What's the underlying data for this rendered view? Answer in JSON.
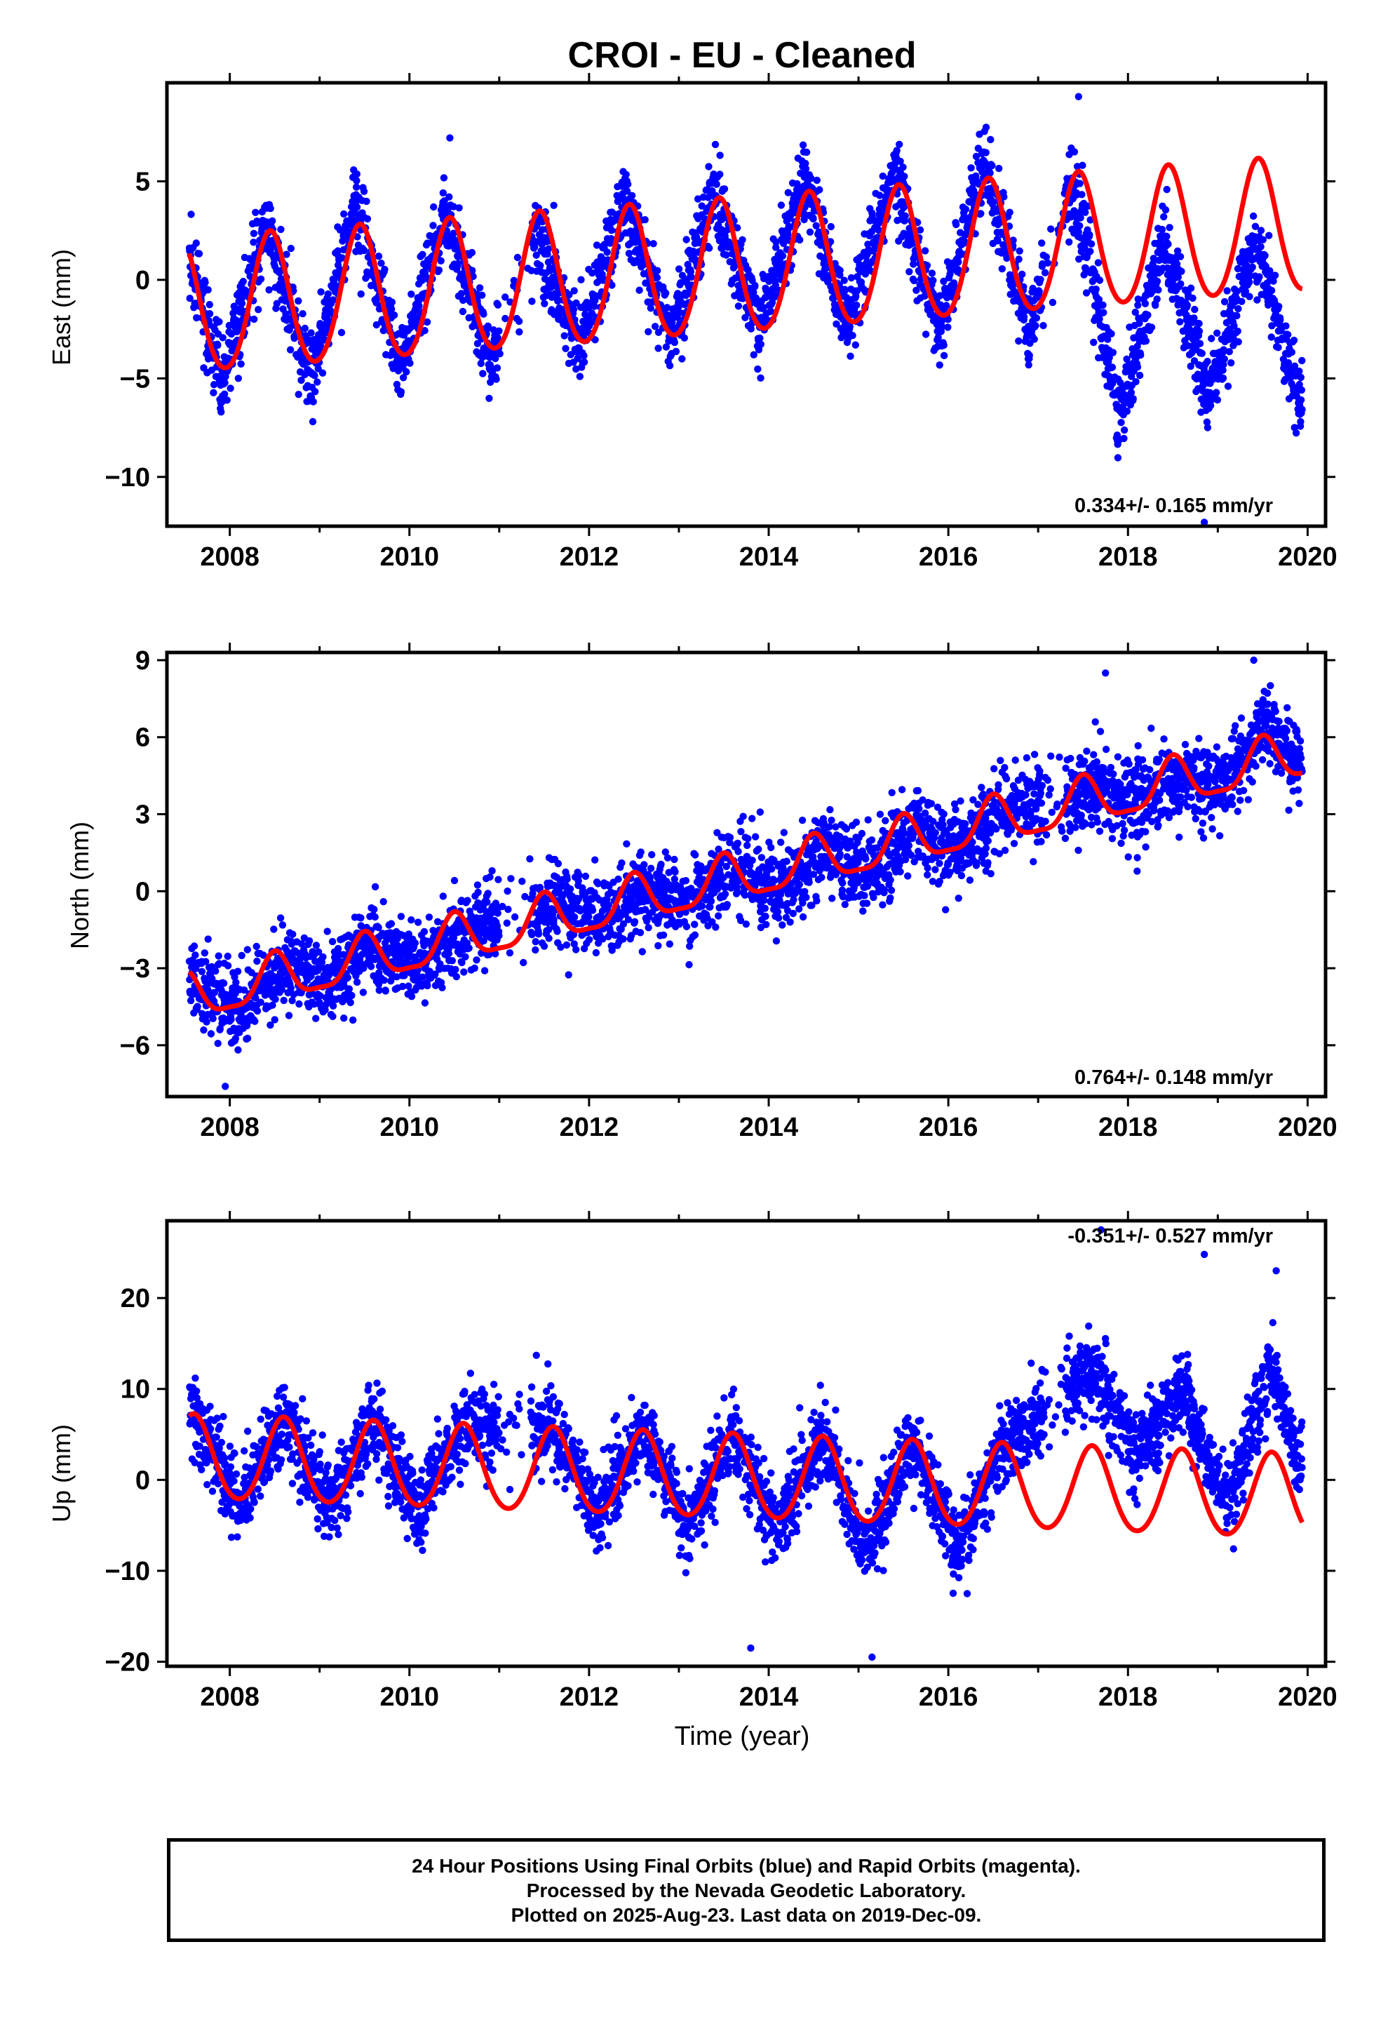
{
  "title": "CROI  - EU - Cleaned",
  "xlabel": "Time (year)",
  "x_ticks": [
    "2008",
    "2010",
    "2012",
    "2014",
    "2016",
    "2018",
    "2020"
  ],
  "footer": {
    "line1": "24 Hour Positions Using Final Orbits (blue) and Rapid Orbits (magenta).",
    "line2": "Processed by the Nevada Geodetic Laboratory.",
    "line3": "Plotted on 2025-Aug-23. Last data on 2019-Dec-09."
  },
  "colors": {
    "points": "#0000ff",
    "model": "#ff0000",
    "frame": "#000000"
  },
  "chart_data": [
    {
      "type": "scatter",
      "panel": "east",
      "ylabel": "East (mm)",
      "rate_label": "0.334+/- 0.165 mm/yr",
      "xlim": [
        2007.3,
        2020.2
      ],
      "ylim": [
        -12.5,
        10
      ],
      "y_ticks": [
        5,
        0,
        -5,
        -10
      ],
      "y_tick_labels": [
        "5",
        "0",
        "−5",
        "−10"
      ],
      "data_range": [
        2007.55,
        2019.94
      ],
      "gaps": [
        [
          2011.0,
          2011.35
        ],
        [
          2017.05,
          2017.3
        ]
      ],
      "series": [
        {
          "kind": "points",
          "sampled_x": [
            2007.6,
            2007.9,
            2008.4,
            2008.9,
            2009.4,
            2009.9,
            2010.4,
            2010.9,
            2011.4,
            2011.9,
            2012.4,
            2012.9,
            2013.4,
            2013.9,
            2014.4,
            2014.9,
            2015.4,
            2015.9,
            2016.4,
            2016.9,
            2017.4,
            2017.9,
            2018.4,
            2018.9,
            2019.4,
            2019.9
          ],
          "sampled_y": [
            0.5,
            -5.5,
            3.0,
            -5.0,
            4.0,
            -4.5,
            3.5,
            -4.0,
            2.5,
            -3.5,
            4.0,
            -3.0,
            4.5,
            -2.5,
            5.0,
            -2.5,
            5.5,
            -2.5,
            6.0,
            -2.5,
            5.0,
            -7.0,
            2.0,
            -6.0,
            2.0,
            -6.0
          ],
          "outliers": [
            {
              "x": 2017.45,
              "y": 9.3
            },
            {
              "x": 2010.45,
              "y": 7.2
            },
            {
              "x": 2018.85,
              "y": -12.3
            }
          ]
        },
        {
          "kind": "model",
          "mean_at_start": -1.5,
          "trend_mm_per_yr": 0.334,
          "annual_amplitude": 3.4,
          "semiannual_amplitude": 0.3,
          "peak_at_year_fraction": 0.45
        }
      ]
    },
    {
      "type": "scatter",
      "panel": "north",
      "ylabel": "North (mm)",
      "rate_label": "0.764+/- 0.148 mm/yr",
      "xlim": [
        2007.3,
        2020.2
      ],
      "ylim": [
        -8,
        9.3
      ],
      "y_ticks": [
        9,
        6,
        3,
        0,
        -3,
        -6
      ],
      "y_tick_labels": [
        "9",
        "6",
        "3",
        "0",
        "−3",
        "−6"
      ],
      "data_range": [
        2007.55,
        2019.94
      ],
      "gaps": [
        [
          2011.0,
          2011.35
        ],
        [
          2017.05,
          2017.3
        ]
      ],
      "series": [
        {
          "kind": "points",
          "sampled_x": [
            2007.6,
            2008.1,
            2008.6,
            2009.1,
            2009.6,
            2010.1,
            2010.6,
            2011.6,
            2012.1,
            2012.6,
            2013.1,
            2013.6,
            2014.1,
            2014.6,
            2015.1,
            2015.6,
            2016.1,
            2016.6,
            2017.6,
            2018.1,
            2018.6,
            2019.1,
            2019.5,
            2019.9
          ],
          "sampled_y": [
            -3.5,
            -4.5,
            -3.0,
            -3.5,
            -2.0,
            -3.0,
            -1.5,
            -0.5,
            -1.0,
            0.0,
            -0.5,
            1.0,
            0.0,
            1.5,
            0.5,
            2.5,
            1.5,
            3.0,
            4.0,
            3.5,
            4.5,
            4.0,
            6.5,
            5.0
          ],
          "outliers": [
            {
              "x": 2007.95,
              "y": -7.6
            },
            {
              "x": 2017.75,
              "y": 8.5
            },
            {
              "x": 2019.4,
              "y": 9.0
            }
          ]
        },
        {
          "kind": "model",
          "mean_at_start": -4.2,
          "trend_mm_per_yr": 0.764,
          "annual_amplitude": 0.9,
          "semiannual_amplitude": 0.25,
          "peak_at_year_fraction": 0.5
        }
      ]
    },
    {
      "type": "scatter",
      "panel": "up",
      "ylabel": "Up (mm)",
      "rate_label": "-0.351+/- 0.527 mm/yr",
      "xlim": [
        2007.3,
        2020.2
      ],
      "ylim": [
        -20.5,
        28.5
      ],
      "y_ticks": [
        20,
        10,
        0,
        -10,
        -20
      ],
      "y_tick_labels": [
        "20",
        "10",
        "0",
        "−10",
        "−20"
      ],
      "data_range": [
        2007.55,
        2019.94
      ],
      "gaps": [
        [
          2011.0,
          2011.35
        ],
        [
          2017.05,
          2017.3
        ]
      ],
      "series": [
        {
          "kind": "points",
          "sampled_x": [
            2007.6,
            2008.1,
            2008.6,
            2009.1,
            2009.6,
            2010.1,
            2010.6,
            2011.6,
            2012.1,
            2012.6,
            2013.1,
            2013.6,
            2014.1,
            2014.6,
            2015.1,
            2015.6,
            2016.1,
            2016.6,
            2017.6,
            2018.1,
            2018.6,
            2019.1,
            2019.6,
            2019.9
          ],
          "sampled_y": [
            8.0,
            -3.0,
            7.0,
            -3.0,
            6.5,
            -3.5,
            6.0,
            6.0,
            -4.0,
            5.5,
            -5.0,
            5.0,
            -5.5,
            4.5,
            -8.0,
            4.0,
            -7.0,
            3.5,
            12.0,
            3.0,
            10.0,
            -3.0,
            12.0,
            2.0
          ],
          "outliers": [
            {
              "x": 2017.7,
              "y": 27.5
            },
            {
              "x": 2018.85,
              "y": 24.8
            },
            {
              "x": 2019.65,
              "y": 23.0
            },
            {
              "x": 2015.15,
              "y": -19.5
            },
            {
              "x": 2013.8,
              "y": -18.5
            }
          ]
        },
        {
          "kind": "model",
          "mean_at_start": 2.3,
          "trend_mm_per_yr": -0.351,
          "annual_amplitude": 4.6,
          "semiannual_amplitude": 0.4,
          "peak_at_year_fraction": 0.6
        }
      ]
    }
  ]
}
